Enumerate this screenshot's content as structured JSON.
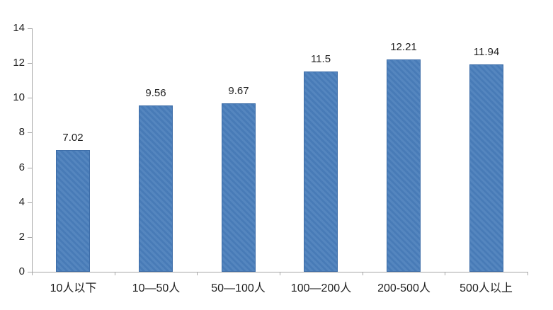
{
  "chart_data": {
    "type": "bar",
    "title": "",
    "xlabel": "",
    "ylabel": "",
    "categories": [
      "10人以下",
      "10—50人",
      "50—100人",
      "100—200人",
      "200-500人",
      "500人以上"
    ],
    "values": [
      7.02,
      9.56,
      9.67,
      11.5,
      12.21,
      11.94
    ],
    "data_labels": [
      "7.02",
      "9.56",
      "9.67",
      "11.5",
      "12.21",
      "11.94"
    ],
    "ylim": [
      0,
      14
    ],
    "ytick_step": 2,
    "yticks": [
      "0",
      "2",
      "4",
      "6",
      "8",
      "10",
      "12",
      "14"
    ],
    "grid": false,
    "legend": "none",
    "styles": {
      "bar_fill": "#4a7ebb",
      "bar_border": "#3d6da8",
      "axis_line": "#a6a6a6",
      "text_color": "#1f1f1f",
      "background": "#ffffff"
    }
  }
}
